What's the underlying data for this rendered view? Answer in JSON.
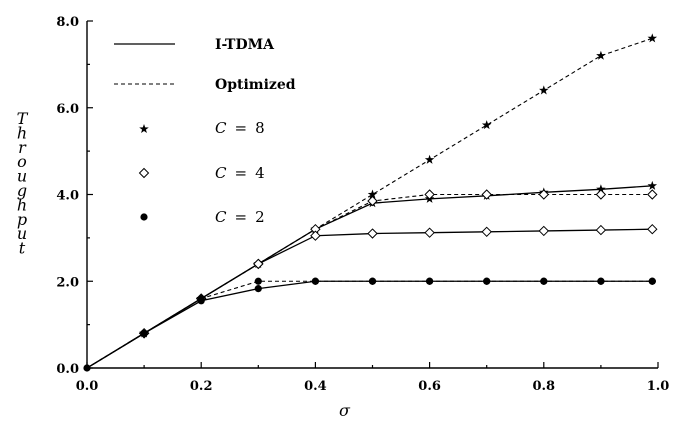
{
  "chart_data": {
    "type": "line",
    "xlabel": "σ",
    "ylabel": "Throughput",
    "xlim": [
      0.0,
      1.0
    ],
    "ylim": [
      0.0,
      8.0
    ],
    "xticks": [
      "0.0",
      "0.2",
      "0.4",
      "0.6",
      "0.8",
      "1.0"
    ],
    "yticks": [
      "0.0",
      "2.0",
      "4.0",
      "6.0",
      "8.0"
    ],
    "grid": false,
    "legend_position": "top-left",
    "line_styles": [
      {
        "label": "I-TDMA",
        "style": "solid"
      },
      {
        "label": "Optimized",
        "style": "dashed"
      }
    ],
    "marker_styles": [
      {
        "label": "C = 8",
        "marker": "star",
        "math_var": "C",
        "value": "8"
      },
      {
        "label": "C = 4",
        "marker": "diamond",
        "math_var": "C",
        "value": "4"
      },
      {
        "label": "C = 2",
        "marker": "circle",
        "math_var": "C",
        "value": "2"
      }
    ],
    "series": [
      {
        "C": 8,
        "line": "optimized",
        "marker": "star",
        "x": [
          0.0,
          0.1,
          0.2,
          0.3,
          0.4,
          0.5,
          0.6,
          0.7,
          0.8,
          0.9,
          0.99
        ],
        "y": [
          0.0,
          0.8,
          1.6,
          2.4,
          3.2,
          4.0,
          4.8,
          5.6,
          6.4,
          7.2,
          7.6
        ]
      },
      {
        "C": 8,
        "line": "i-tdma",
        "marker": "star",
        "x": [
          0.0,
          0.1,
          0.2,
          0.3,
          0.4,
          0.5,
          0.6,
          0.7,
          0.8,
          0.9,
          0.99
        ],
        "y": [
          0.0,
          0.8,
          1.6,
          2.4,
          3.2,
          3.8,
          3.9,
          3.97,
          4.05,
          4.12,
          4.2
        ]
      },
      {
        "C": 4,
        "line": "optimized",
        "marker": "diamond",
        "x": [
          0.0,
          0.1,
          0.2,
          0.3,
          0.4,
          0.5,
          0.6,
          0.7,
          0.8,
          0.9,
          0.99
        ],
        "y": [
          0.0,
          0.8,
          1.6,
          2.4,
          3.2,
          3.85,
          4.0,
          4.0,
          4.0,
          4.0,
          4.0
        ]
      },
      {
        "C": 4,
        "line": "i-tdma",
        "marker": "diamond",
        "x": [
          0.0,
          0.1,
          0.2,
          0.3,
          0.4,
          0.5,
          0.6,
          0.7,
          0.8,
          0.9,
          0.99
        ],
        "y": [
          0.0,
          0.8,
          1.6,
          2.4,
          3.05,
          3.1,
          3.12,
          3.14,
          3.16,
          3.18,
          3.2
        ]
      },
      {
        "C": 2,
        "line": "optimized",
        "marker": "circle",
        "x": [
          0.0,
          0.1,
          0.2,
          0.3,
          0.4,
          0.5,
          0.6,
          0.7,
          0.8,
          0.9,
          0.99
        ],
        "y": [
          0.0,
          0.8,
          1.6,
          2.0,
          2.0,
          2.0,
          2.0,
          2.0,
          2.0,
          2.0,
          2.0
        ]
      },
      {
        "C": 2,
        "line": "i-tdma",
        "marker": "circle",
        "x": [
          0.0,
          0.1,
          0.2,
          0.3,
          0.4,
          0.5,
          0.6,
          0.7,
          0.8,
          0.9,
          0.99
        ],
        "y": [
          0.0,
          0.8,
          1.55,
          1.83,
          2.0,
          2.0,
          2.0,
          2.0,
          2.0,
          2.0,
          2.0
        ]
      }
    ]
  }
}
